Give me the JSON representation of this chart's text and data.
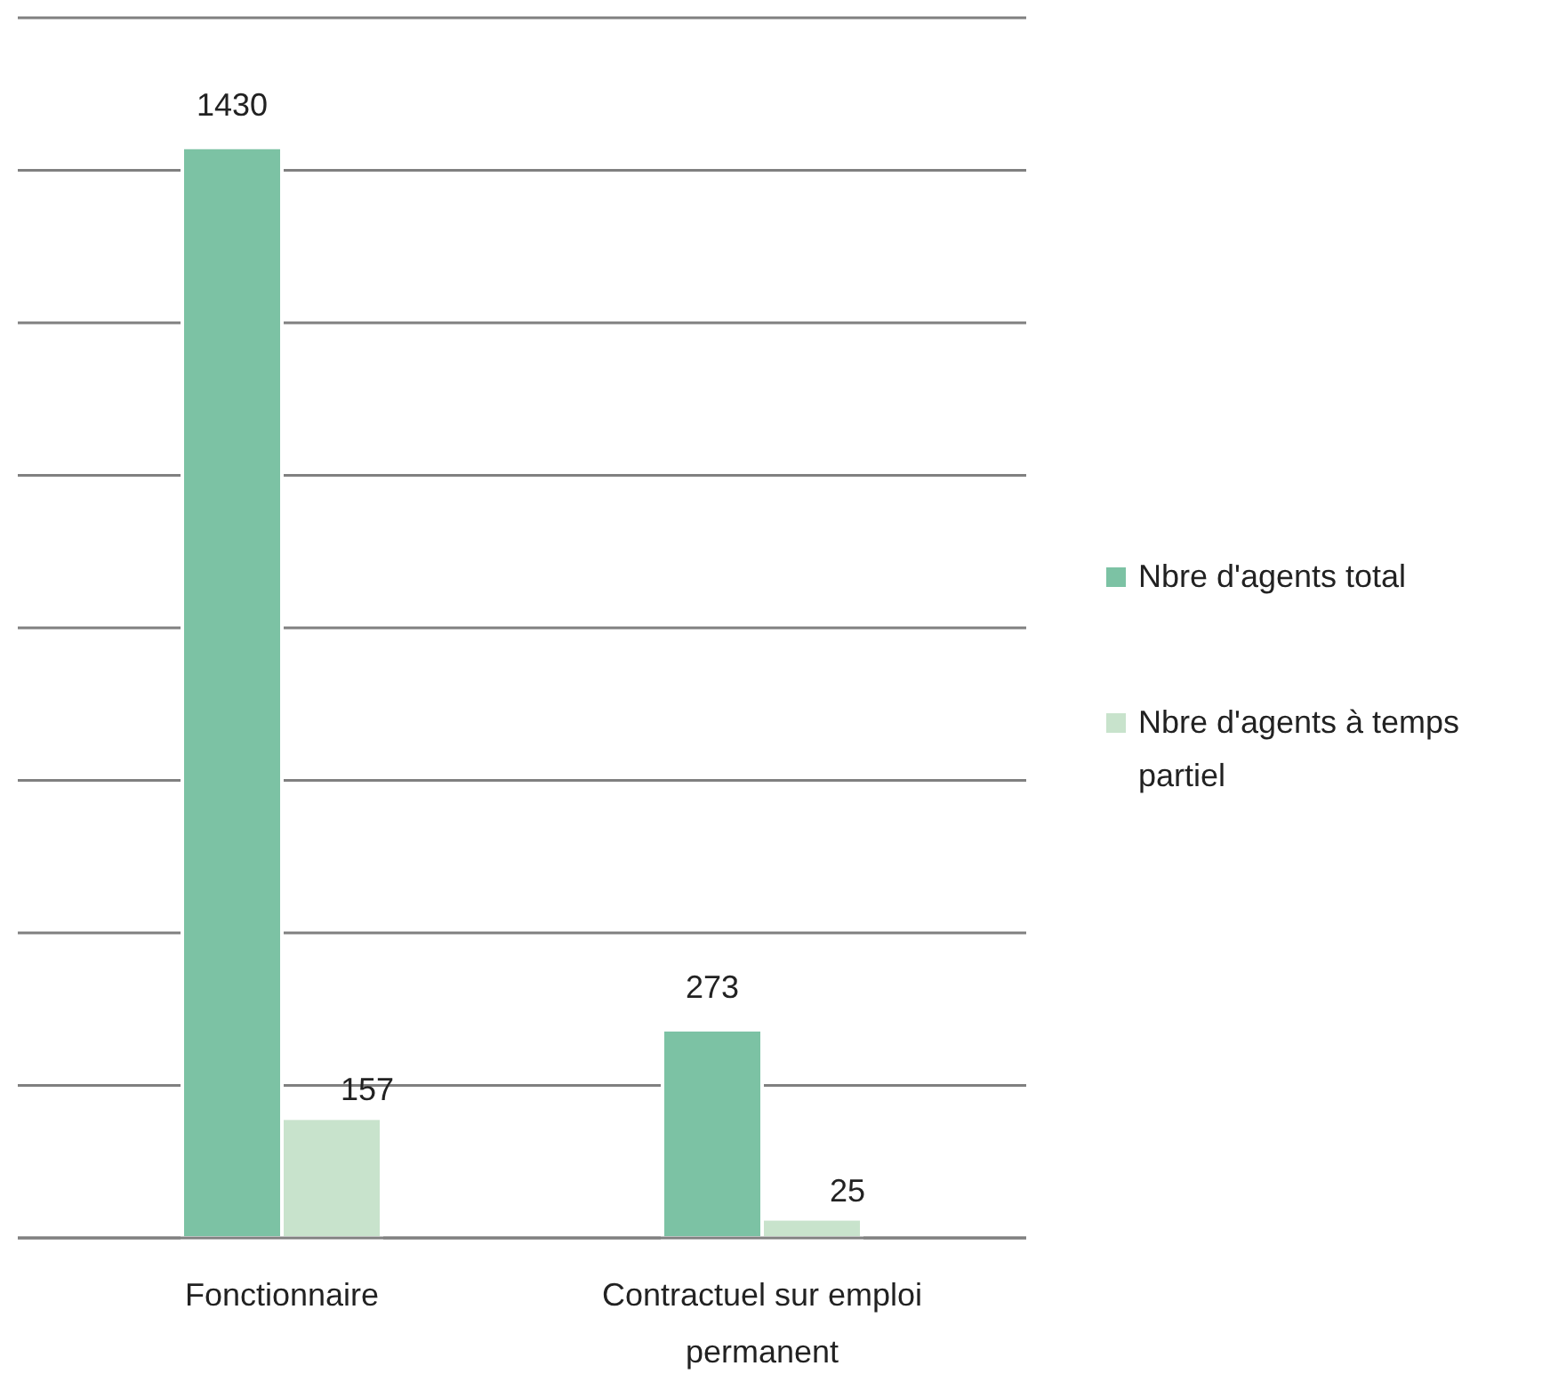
{
  "chart_data": {
    "type": "bar",
    "categories": [
      "Fonctionnaire",
      "Contractuel sur emploi permanent"
    ],
    "series": [
      {
        "name": "Nbre d'agents total",
        "color": "#7cc2a4",
        "values": [
          1430,
          273
        ]
      },
      {
        "name": "Nbre d'agents à temps partiel",
        "color": "#c8e3cc",
        "values": [
          157,
          25
        ]
      }
    ],
    "ylim": [
      0,
      1600
    ],
    "yticks": [
      {
        "value": 0,
        "label": null
      },
      {
        "value": 200,
        "label": null
      },
      {
        "value": 400,
        "label": null
      },
      {
        "value": 600,
        "label": null
      },
      {
        "value": 800,
        "label": null
      },
      {
        "value": 1000,
        "label": null
      },
      {
        "value": 1200,
        "label": null
      },
      {
        "value": 1400,
        "label": null
      },
      {
        "value": 1600,
        "label": null
      }
    ],
    "grid": "y",
    "tick_labels": "x",
    "data_labels": true,
    "legend": "right"
  }
}
